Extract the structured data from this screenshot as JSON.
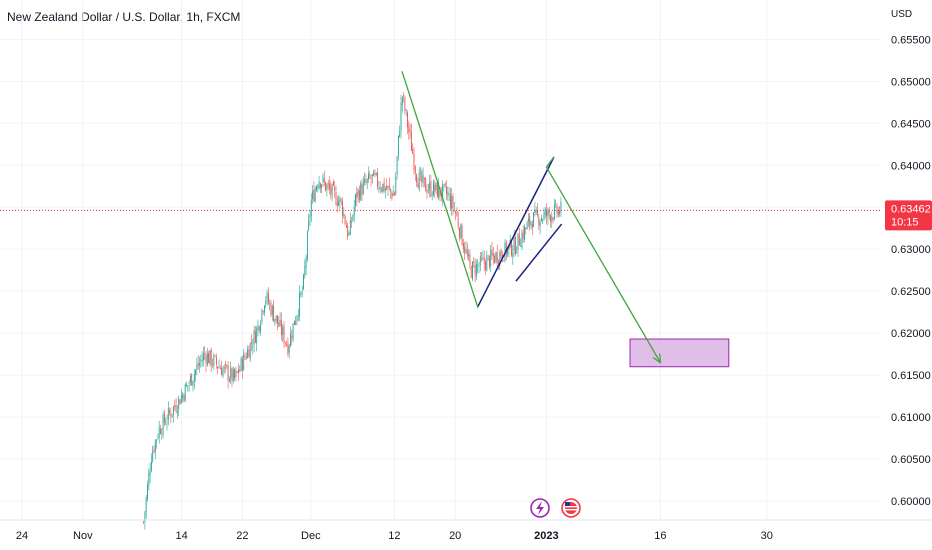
{
  "title": "New Zealand Dollar / U.S. Dollar, 1h, FXCM",
  "currency": "USD",
  "price_tag": {
    "price": "0.63462",
    "countdown": "10:15"
  },
  "colors": {
    "up": "#26a69a",
    "down": "#ef5350",
    "grid": "#f0f3fa",
    "pattern_line": "#3fa63a",
    "channel_line": "#1a237e",
    "target_fill": "#e1bee7",
    "target_border": "#9c27b0",
    "price_tag": "#f23645"
  },
  "icons": [
    "lightning-event-icon",
    "us-flag-event-icon"
  ],
  "chart_data": {
    "type": "candlestick",
    "x_ticks": [
      "24",
      "Nov",
      "14",
      "22",
      "Dec",
      "12",
      "20",
      "2023",
      "16",
      "30"
    ],
    "y_ticks": [
      "0.60000",
      "0.60500",
      "0.61000",
      "0.61500",
      "0.62000",
      "0.62500",
      "0.63000",
      "0.63500",
      "0.64000",
      "0.64500",
      "0.65000",
      "0.65500"
    ],
    "ylim": [
      0.5975,
      0.6585
    ],
    "current_price": 0.63462,
    "price_path": [
      {
        "x": "Nov 9",
        "y": 0.5975
      },
      {
        "x": "Nov 10",
        "y": 0.6055
      },
      {
        "x": "Nov 11",
        "y": 0.6085
      },
      {
        "x": "Nov 14",
        "y": 0.6125
      },
      {
        "x": "Nov 17",
        "y": 0.6175
      },
      {
        "x": "Nov 21",
        "y": 0.6145
      },
      {
        "x": "Nov 24",
        "y": 0.6205
      },
      {
        "x": "Nov 25",
        "y": 0.6245
      },
      {
        "x": "Nov 28",
        "y": 0.6185
      },
      {
        "x": "Nov 30",
        "y": 0.6255
      },
      {
        "x": "Dec 1",
        "y": 0.6355
      },
      {
        "x": "Dec 2",
        "y": 0.6385
      },
      {
        "x": "Dec 5",
        "y": 0.6355
      },
      {
        "x": "Dec 6",
        "y": 0.6315
      },
      {
        "x": "Dec 7",
        "y": 0.6365
      },
      {
        "x": "Dec 9",
        "y": 0.6385
      },
      {
        "x": "Dec 12",
        "y": 0.6365
      },
      {
        "x": "Dec 13",
        "y": 0.6485
      },
      {
        "x": "Dec 15",
        "y": 0.6385
      },
      {
        "x": "Dec 16",
        "y": 0.6375
      },
      {
        "x": "Dec 19",
        "y": 0.6365
      },
      {
        "x": "Dec 20",
        "y": 0.6345
      },
      {
        "x": "Dec 22",
        "y": 0.6275
      },
      {
        "x": "Dec 26",
        "y": 0.6295
      },
      {
        "x": "Dec 28",
        "y": 0.6305
      },
      {
        "x": "Dec 30",
        "y": 0.6335
      },
      {
        "x": "Jan 3",
        "y": 0.6346
      }
    ],
    "annotations": {
      "swing_lines": [
        {
          "from": {
            "x": "Dec 13",
            "y": 0.6512
          },
          "to": {
            "x": "Dec 23",
            "y": 0.623
          }
        },
        {
          "from": {
            "x": "Jan 1",
            "y": 0.6398
          },
          "to": {
            "x": "Jan 16",
            "y": 0.6165
          }
        }
      ],
      "channel": [
        {
          "from": {
            "x": "Dec 23",
            "y": 0.6232
          },
          "to": {
            "x": "Jan 2",
            "y": 0.641
          }
        },
        {
          "from": {
            "x": "Dec 28",
            "y": 0.6262
          },
          "to": {
            "x": "Jan 3",
            "y": 0.633
          }
        }
      ],
      "target_zone": {
        "x0": "Jan 12",
        "x1": "Jan 25",
        "y0": 0.616,
        "y1": 0.6193
      }
    },
    "grid": true
  }
}
